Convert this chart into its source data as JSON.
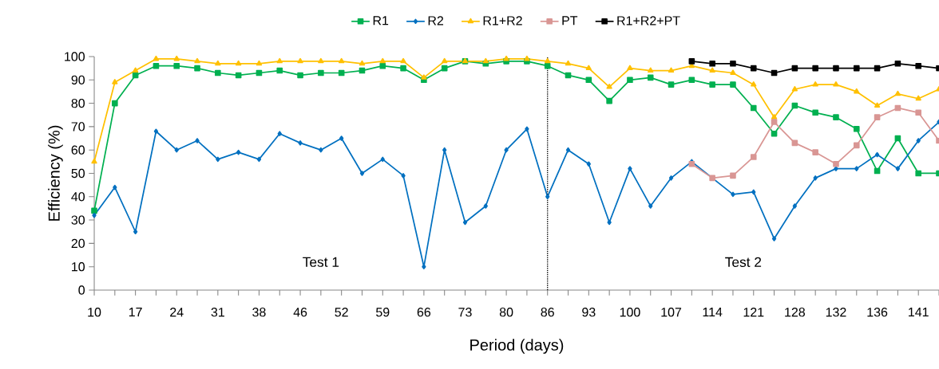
{
  "chart_data": {
    "type": "line",
    "xlabel": "Period (days)",
    "ylabel": "Efficiency (%)",
    "categories": [
      "10",
      null,
      "17",
      null,
      "24",
      null,
      "31",
      null,
      "38",
      null,
      "46",
      null,
      "52",
      null,
      "59",
      null,
      "66",
      null,
      "73",
      null,
      "80",
      null,
      "86",
      null,
      "93",
      null,
      "100",
      null,
      "107",
      null,
      "114",
      null,
      "121",
      null,
      "128",
      null,
      "132",
      null,
      "136",
      null,
      "141",
      null
    ],
    "ylim": [
      0,
      100
    ],
    "yticks": [
      0,
      10,
      20,
      30,
      40,
      50,
      60,
      70,
      80,
      90,
      100
    ],
    "legend": "top",
    "grid": false,
    "line_style": "solid",
    "ref_lines": [
      {
        "axis": "x",
        "value": "86",
        "color": "#000000",
        "line_style": "dotted"
      }
    ],
    "annotations": [
      "Test 1",
      "Test 2"
    ],
    "series": [
      {
        "name": "R1",
        "color": "#00b050",
        "marker": "square",
        "values": [
          34,
          80,
          92,
          96,
          96,
          95,
          93,
          92,
          93,
          94,
          92,
          93,
          93,
          94,
          96,
          95,
          90,
          95,
          98,
          97,
          98,
          98,
          96,
          92,
          90,
          81,
          90,
          91,
          88,
          90,
          88,
          88,
          78,
          67,
          79,
          76,
          74,
          69,
          51,
          65,
          50,
          50
        ]
      },
      {
        "name": "R2",
        "color": "#0070c0",
        "marker": "diamond",
        "values": [
          32,
          44,
          25,
          68,
          60,
          64,
          56,
          59,
          56,
          67,
          63,
          60,
          65,
          50,
          56,
          49,
          10,
          60,
          29,
          36,
          60,
          69,
          40,
          60,
          54,
          29,
          52,
          36,
          48,
          55,
          48,
          41,
          42,
          22,
          36,
          48,
          52,
          52,
          58,
          52,
          64,
          72
        ]
      },
      {
        "name": "R1+R2",
        "color": "#ffc000",
        "marker": "triangle",
        "values": [
          55,
          89,
          94,
          99,
          99,
          98,
          97,
          97,
          97,
          98,
          98,
          98,
          98,
          97,
          98,
          98,
          91,
          98,
          98,
          98,
          99,
          99,
          98,
          97,
          95,
          87,
          95,
          94,
          94,
          96,
          94,
          93,
          88,
          74,
          86,
          88,
          88,
          85,
          79,
          84,
          82,
          86
        ]
      },
      {
        "name": "PT",
        "color": "#d99694",
        "marker": "square",
        "values": [
          null,
          null,
          null,
          null,
          null,
          null,
          null,
          null,
          null,
          null,
          null,
          null,
          null,
          null,
          null,
          null,
          null,
          null,
          null,
          null,
          null,
          null,
          null,
          null,
          null,
          null,
          null,
          null,
          null,
          54,
          48,
          49,
          57,
          72,
          63,
          59,
          54,
          62,
          74,
          78,
          76,
          64
        ]
      },
      {
        "name": "R1+R2+PT",
        "color": "#000000",
        "marker": "square",
        "values": [
          null,
          null,
          null,
          null,
          null,
          null,
          null,
          null,
          null,
          null,
          null,
          null,
          null,
          null,
          null,
          null,
          null,
          null,
          null,
          null,
          null,
          null,
          null,
          null,
          null,
          null,
          null,
          null,
          null,
          98,
          97,
          97,
          95,
          93,
          95,
          95,
          95,
          95,
          95,
          97,
          96,
          95
        ]
      }
    ]
  }
}
